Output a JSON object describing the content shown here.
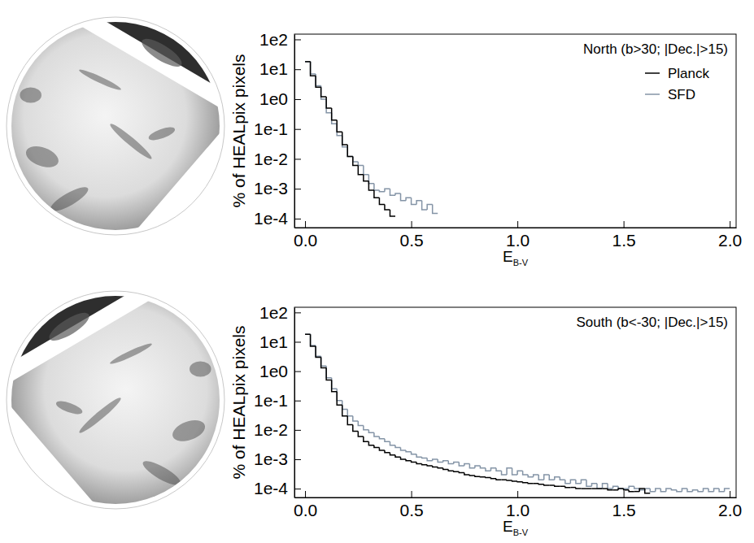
{
  "chart_data": [
    {
      "type": "histogram",
      "title": "North (b>30; |Dec.|>15)",
      "xlabel": "E",
      "xlabel_subscript": "B-V",
      "ylabel": "% of HEALpix pixels",
      "bins": [
        0,
        0.025,
        0.05,
        0.075,
        0.1,
        0.125,
        0.15,
        0.175,
        0.2,
        0.225,
        0.25,
        0.275,
        0.3,
        0.325,
        0.35,
        0.375,
        0.4,
        0.425,
        0.45,
        0.475,
        0.5,
        0.525,
        0.55,
        0.575,
        0.6,
        0.625,
        0.65
      ],
      "series": [
        {
          "name": "Planck",
          "color": "#000000",
          "values": [
            18,
            6,
            2.5,
            1.2,
            0.5,
            0.2,
            0.08,
            0.03,
            0.012,
            0.006,
            0.003,
            0.0018,
            0.0009,
            0.0005,
            0.0003,
            0.0002,
            0.00012,
            null,
            null,
            null,
            null,
            null,
            null,
            null,
            null,
            null
          ]
        },
        {
          "name": "SFD",
          "color": "#8494a6",
          "values": [
            18,
            7,
            2.8,
            1,
            0.35,
            0.15,
            0.06,
            0.025,
            0.012,
            0.008,
            0.006,
            0.003,
            0.0015,
            0.0009,
            0.0008,
            0.001,
            0.0006,
            0.0007,
            0.0004,
            0.0005,
            0.0003,
            0.0004,
            0.0002,
            0.0003,
            0.00015,
            null
          ]
        }
      ],
      "xlim": [
        -0.05,
        2.03
      ],
      "xticks": [
        {
          "value": 0,
          "label": "0.0"
        },
        0.5,
        {
          "value": 1,
          "label": "1.0"
        },
        1.5,
        {
          "value": 2,
          "label": "2.0"
        }
      ],
      "ylim": [
        5e-05,
        150
      ],
      "yticks": [
        {
          "value": 100,
          "label": "1e2"
        },
        {
          "value": 10,
          "label": "1e1"
        },
        {
          "value": 1,
          "label": "1e0"
        },
        {
          "value": 0.1,
          "label": "1e-1"
        },
        {
          "value": 0.01,
          "label": "1e-2"
        },
        {
          "value": 0.001,
          "label": "1e-3"
        },
        {
          "value": 0.0001,
          "label": "1e-4"
        }
      ],
      "log": "y",
      "legend": "upper right"
    },
    {
      "type": "histogram",
      "title": "South (b<-30; |Dec.|>15)",
      "xlabel": "E",
      "xlabel_subscript": "B-V",
      "ylabel": "% of HEALpix pixels",
      "bins": [
        0,
        0.025,
        0.05,
        0.075,
        0.1,
        0.125,
        0.15,
        0.175,
        0.2,
        0.225,
        0.25,
        0.275,
        0.3,
        0.325,
        0.35,
        0.375,
        0.4,
        0.425,
        0.45,
        0.475,
        0.5,
        0.525,
        0.55,
        0.575,
        0.6,
        0.625,
        0.65,
        0.675,
        0.7,
        0.725,
        0.75,
        0.775,
        0.8,
        0.825,
        0.85,
        0.875,
        0.9,
        0.925,
        0.95,
        0.975,
        1,
        1.025,
        1.05,
        1.075,
        1.1,
        1.125,
        1.15,
        1.175,
        1.2,
        1.225,
        1.25,
        1.275,
        1.3,
        1.325,
        1.35,
        1.375,
        1.4,
        1.425,
        1.45,
        1.475,
        1.5,
        1.525,
        1.55,
        1.575,
        1.6,
        1.625,
        1.65,
        1.675,
        1.7,
        1.725,
        1.75,
        1.775,
        1.8,
        1.825,
        1.85,
        1.875,
        1.9,
        1.925,
        1.95,
        1.975,
        2
      ],
      "series": [
        {
          "color": "#000000",
          "values": [
            18,
            7,
            3,
            1.3,
            0.5,
            0.2,
            0.07,
            0.03,
            0.015,
            0.009,
            0.006,
            0.004,
            0.003,
            0.0025,
            0.002,
            0.0017,
            0.0014,
            0.0012,
            0.001,
            0.0009,
            0.0008,
            0.0007,
            0.00065,
            0.0006,
            0.00055,
            0.0005,
            0.00045,
            0.0004,
            0.00038,
            0.00035,
            0.0003,
            0.00028,
            0.00026,
            0.00025,
            0.00024,
            0.00022,
            0.0002,
            0.0002,
            0.00019,
            0.00018,
            0.00017,
            0.00016,
            0.00015,
            0.00015,
            0.00014,
            0.00013,
            0.00013,
            0.00012,
            0.00012,
            0.00011,
            0.00011,
            0.0001,
            0.0001,
            0.0001,
            0.0001,
            0.0001,
            0.0001,
            9e-05,
            9e-05,
            0.0001,
            9e-05,
            8e-05,
            8e-05,
            0.0001,
            7e-05,
            null,
            null,
            null,
            null,
            null,
            null,
            null,
            null,
            null,
            null,
            null,
            null,
            null,
            null,
            null
          ]
        },
        {
          "color": "#8494a6",
          "values": [
            18,
            7.5,
            3.2,
            1.5,
            0.6,
            0.25,
            0.1,
            0.05,
            0.03,
            0.02,
            0.014,
            0.01,
            0.008,
            0.006,
            0.005,
            0.004,
            0.003,
            0.0025,
            0.002,
            0.0018,
            0.0015,
            0.0012,
            0.0011,
            0.0009,
            0.001,
            0.0008,
            0.0009,
            0.0007,
            0.0008,
            0.0006,
            0.0007,
            0.0005,
            0.0006,
            0.0005,
            0.0004,
            0.0005,
            0.0004,
            0.0003,
            0.0005,
            0.0003,
            0.0004,
            0.0003,
            0.00025,
            0.0003,
            0.0002,
            0.0003,
            0.0002,
            0.00025,
            0.0002,
            0.00015,
            0.0002,
            0.00015,
            0.0002,
            0.00012,
            0.00015,
            0.0001,
            0.00015,
            0.0001,
            0.00012,
            0.0001,
            0.0001,
            0.00012,
            0.0001,
            9e-05,
            0.0001,
            8e-05,
            0.0001,
            8e-05,
            0.0001,
            9e-05,
            8e-05,
            0.0001,
            8e-05,
            9e-05,
            8e-05,
            0.0001,
            8e-05,
            0.0001,
            8e-05,
            0.0001
          ]
        }
      ],
      "xlim": [
        -0.05,
        2.03
      ],
      "xticks": [
        {
          "value": 0,
          "label": "0.0"
        },
        0.5,
        {
          "value": 1,
          "label": "1.0"
        },
        1.5,
        {
          "value": 2,
          "label": "2.0"
        }
      ],
      "ylim": [
        5e-05,
        150
      ],
      "yticks": [
        {
          "value": 100,
          "label": "1e2"
        },
        {
          "value": 10,
          "label": "1e1"
        },
        {
          "value": 1,
          "label": "1e0"
        },
        {
          "value": 0.1,
          "label": "1e-1"
        },
        {
          "value": 0.01,
          "label": "1e-2"
        },
        {
          "value": 0.001,
          "label": "1e-3"
        },
        {
          "value": 0.0001,
          "label": "1e-4"
        }
      ],
      "log": "y"
    }
  ]
}
